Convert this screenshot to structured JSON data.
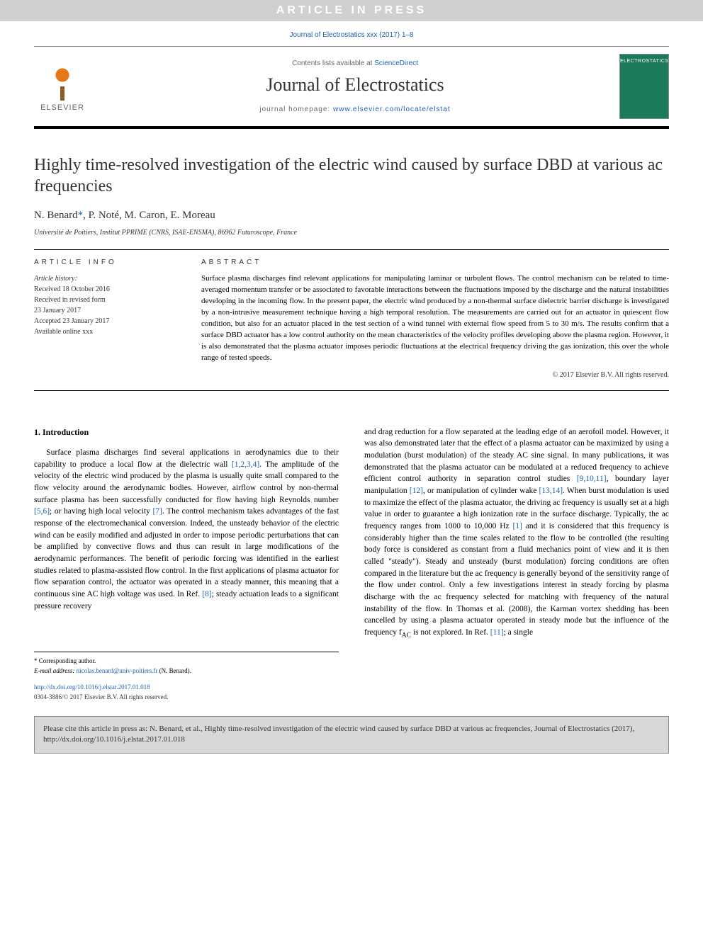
{
  "banner_text": "ARTICLE IN PRESS",
  "journal_ref": "Journal of Electrostatics xxx (2017) 1–8",
  "header": {
    "elsevier_label": "ELSEVIER",
    "contents_prefix": "Contents lists available at ",
    "contents_link": "ScienceDirect",
    "journal_name": "Journal of Electrostatics",
    "homepage_prefix": "journal homepage: ",
    "homepage_url": "www.elsevier.com/locate/elstat",
    "cover_label": "ELECTROSTATICS"
  },
  "title": "Highly time-resolved investigation of the electric wind caused by surface DBD at various ac frequencies",
  "authors_html": "N. Benard*, P. Noté, M. Caron, E. Moreau",
  "affiliation": "Université de Poitiers, Institut PPRIME (CNRS, ISAE-ENSMA), 86962 Futuroscope, France",
  "article_info_heading": "ARTICLE INFO",
  "abstract_heading": "ABSTRACT",
  "history": {
    "label": "Article history:",
    "received": "Received 18 October 2016",
    "revised1": "Received in revised form",
    "revised2": "23 January 2017",
    "accepted": "Accepted 23 January 2017",
    "online": "Available online xxx"
  },
  "abstract": "Surface plasma discharges find relevant applications for manipulating laminar or turbulent flows. The control mechanism can be related to time-averaged momentum transfer or be associated to favorable interactions between the fluctuations imposed by the discharge and the natural instabilities developing in the incoming flow. In the present paper, the electric wind produced by a non-thermal surface dielectric barrier discharge is investigated by a non-intrusive measurement technique having a high temporal resolution. The measurements are carried out for an actuator in quiescent flow condition, but also for an actuator placed in the test section of a wind tunnel with external flow speed from 5 to 30 m/s. The results confirm that a surface DBD actuator has a low control authority on the mean characteristics of the velocity profiles developing above the plasma region. However, it is also demonstrated that the plasma actuator imposes periodic fluctuations at the electrical frequency driving the gas ionization, this over the whole range of tested speeds.",
  "copyright": "© 2017 Elsevier B.V. All rights reserved.",
  "intro_heading": "1. Introduction",
  "col1_p1a": "Surface plasma discharges find several applications in aerodynamics due to their capability to produce a local flow at the dielectric wall ",
  "col1_cite1": "[1,2,3,4]",
  "col1_p1b": ". The amplitude of the velocity of the electric wind produced by the plasma is usually quite small compared to the flow velocity around the aerodynamic bodies. However, airflow control by non-thermal surface plasma has been successfully conducted for flow having high Reynolds number ",
  "col1_cite2": "[5,6]",
  "col1_p1c": "; or having high local velocity ",
  "col1_cite3": "[7]",
  "col1_p1d": ". The control mechanism takes advantages of the fast response of the electromechanical conversion. Indeed, the unsteady behavior of the electric wind can be easily modified and adjusted in order to impose periodic perturbations that can be amplified by convective flows and thus can result in large modifications of the aerodynamic performances. The benefit of periodic forcing was identified in the earliest studies related to plasma-assisted flow control. In the first applications of plasma actuator for flow separation control, the actuator was operated in a steady manner, this meaning that a continuous sine AC high voltage was used. In Ref. ",
  "col1_cite4": "[8]",
  "col1_p1e": "; steady actuation leads to a significant pressure recovery",
  "col2_p1a": "and drag reduction for a flow separated at the leading edge of an aerofoil model. However, it was also demonstrated later that the effect of a plasma actuator can be maximized by using a modulation (burst modulation) of the steady AC sine signal. In many publications, it was demonstrated that the plasma actuator can be modulated at a reduced frequency to achieve efficient control authority in separation control studies ",
  "col2_cite1": "[9,10,11]",
  "col2_p1b": ", boundary layer manipulation ",
  "col2_cite2": "[12]",
  "col2_p1c": ", or manipulation of cylinder wake ",
  "col2_cite3": "[13,14]",
  "col2_p1d": ". When burst modulation is used to maximize the effect of the plasma actuator, the driving ac frequency is usually set at a high value in order to guarantee a high ionization rate in the surface discharge. Typically, the ac frequency ranges from 1000 to 10,000 Hz ",
  "col2_cite4": "[1]",
  "col2_p1e": " and it is considered that this frequency is considerably higher than the time scales related to the flow to be controlled (the resulting body force is considered as constant from a fluid mechanics point of view and it is then called \"steady\"). Steady and unsteady (burst modulation) forcing conditions are often compared in the literature but the ac frequency is generally beyond of the sensitivity range of the flow under control. Only a few investigations interest in steady forcing by plasma discharge with the ac frequency selected for matching with frequency of the natural instability of the flow. In Thomas et al. (2008), the Karman vortex shedding has been cancelled by using a plasma actuator operated in steady mode but the influence of the frequency f",
  "col2_sub": "AC",
  "col2_p1f": " is not explored. In Ref. ",
  "col2_cite5": "[11]",
  "col2_p1g": "; a single",
  "footnote": {
    "corr": "* Corresponding author.",
    "email_label": "E-mail address: ",
    "email": "nicolas.benard@univ-poitiers.fr",
    "email_suffix": " (N. Benard)."
  },
  "doi": {
    "url": "http://dx.doi.org/10.1016/j.elstat.2017.01.018",
    "issn": "0304-3886/© 2017 Elsevier B.V. All rights reserved."
  },
  "citation_box": "Please cite this article in press as: N. Benard, et al., Highly time-resolved investigation of the electric wind caused by surface DBD at various ac frequencies, Journal of Electrostatics (2017), http://dx.doi.org/10.1016/j.elstat.2017.01.018",
  "colors": {
    "link": "#1e5fb4",
    "banner_bg": "#d0d0d0",
    "cover_bg": "#1a7a5a",
    "citebox_bg": "#d8d8d8"
  }
}
